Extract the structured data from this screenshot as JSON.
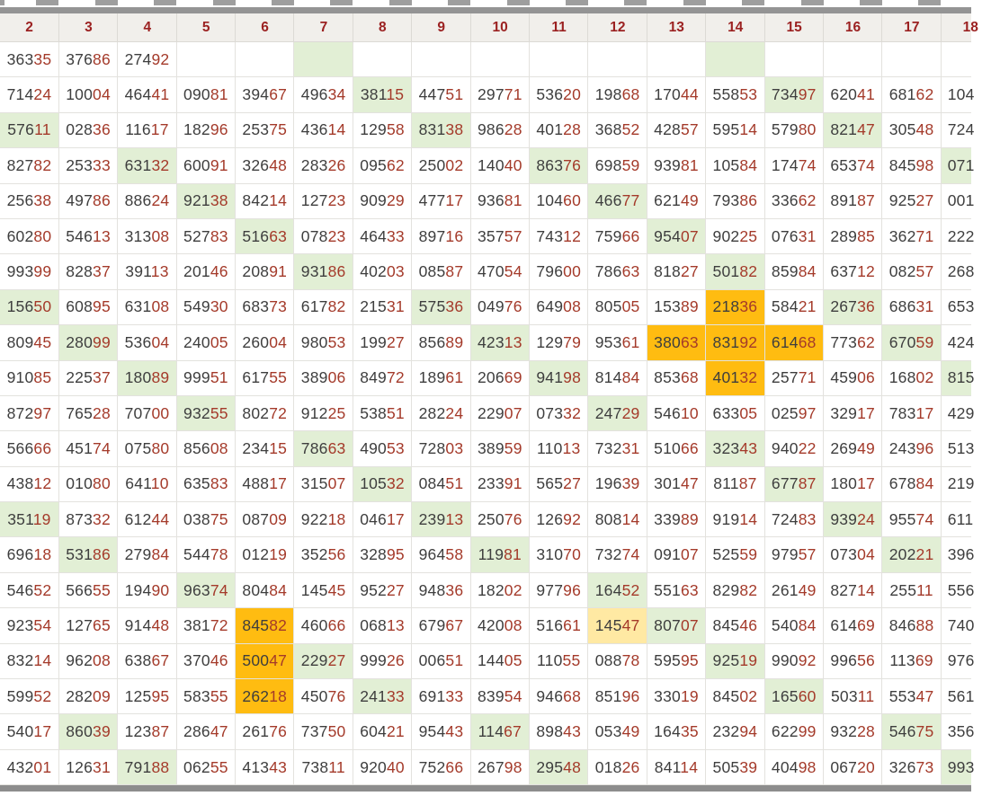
{
  "colors": {
    "digit_prefix": "#3e3e3e",
    "digit_suffix": "#a43a2a",
    "header_text": "#9b2121",
    "header_bg": "#f1efeb",
    "grid_border": "#e3e2de",
    "frame_bar": "#949494",
    "highlights": {
      "g": "#e2efd5",
      "o": "#ffbc11",
      "y": "#ffe9a3"
    },
    "highlight_legend": {
      "g": "light-green",
      "o": "orange",
      "y": "pale-yellow"
    }
  },
  "table": {
    "columns": [
      "2",
      "3",
      "4",
      "5",
      "6",
      "7",
      "8",
      "9",
      "10",
      "11",
      "12",
      "13",
      "14",
      "15",
      "16",
      "17",
      "18"
    ],
    "rows": [
      [
        "36335",
        "37686",
        "27492",
        "",
        "",
        "#g",
        "",
        "",
        "",
        "",
        "",
        "",
        "#g",
        "",
        "",
        "",
        ""
      ],
      [
        "71424",
        "10004",
        "46441",
        "09081",
        "39467",
        "49634",
        "38115#g",
        "44751",
        "29771",
        "53620",
        "19868",
        "17044",
        "55853",
        "73497#g",
        "62041",
        "68162",
        "104"
      ],
      [
        "57611#g",
        "02836",
        "11617",
        "18296",
        "25375",
        "43614",
        "12958",
        "83138#g",
        "98628",
        "40128",
        "36852",
        "42857",
        "59514",
        "57980",
        "82147#g",
        "30548",
        "724"
      ],
      [
        "82782",
        "25333",
        "63132#g",
        "60091",
        "32648",
        "28326",
        "09562",
        "25002",
        "14040",
        "86376#g",
        "69859",
        "93981",
        "10584",
        "17474",
        "65374",
        "84598",
        "071#g"
      ],
      [
        "25638",
        "49786",
        "88624",
        "92138#g",
        "84214",
        "12723",
        "90929",
        "47717",
        "93681",
        "10460",
        "46677#g",
        "62149",
        "79386",
        "33662",
        "89187",
        "92527",
        "001"
      ],
      [
        "60280",
        "54613",
        "31308",
        "52783",
        "51663#g",
        "07823",
        "46433",
        "89716",
        "35757",
        "74312",
        "75966",
        "95407#g",
        "90225",
        "07631",
        "28985",
        "36271",
        "222"
      ],
      [
        "99399",
        "82837",
        "39113",
        "20146",
        "20891",
        "93186#g",
        "40203",
        "08587",
        "47054",
        "79600",
        "78663",
        "81827",
        "50182#g",
        "85984",
        "63712",
        "08257",
        "268"
      ],
      [
        "15650#g",
        "60895",
        "63108",
        "54930",
        "68373",
        "61782",
        "21531",
        "57536#g",
        "04976",
        "64908",
        "80505",
        "15389",
        "21836#o",
        "58421",
        "26736#g",
        "68631",
        "653"
      ],
      [
        "80945",
        "28099#g",
        "53604",
        "24005",
        "26004",
        "98053",
        "19927",
        "85689",
        "42313#g",
        "12979",
        "95361",
        "38063#o",
        "83192#o",
        "61468#o",
        "77362",
        "67059#g",
        "424"
      ],
      [
        "91085",
        "22537",
        "18089#g",
        "99951",
        "61755",
        "38906",
        "84972",
        "18961",
        "20669",
        "94198#g",
        "81484",
        "85368",
        "40132#o",
        "25771",
        "45906",
        "16802",
        "815#g"
      ],
      [
        "87297",
        "76528",
        "70700",
        "93255#g",
        "80272",
        "91225",
        "53851",
        "28224",
        "22907",
        "07332",
        "24729#g",
        "54610",
        "63305",
        "02597",
        "32917",
        "78317",
        "429"
      ],
      [
        "56666",
        "45174",
        "07580",
        "85608",
        "23415",
        "78663#g",
        "49053",
        "72803",
        "38959",
        "11013",
        "73231",
        "51066",
        "32343#g",
        "94022",
        "26949",
        "24396",
        "513"
      ],
      [
        "43812",
        "01080",
        "64110",
        "63583",
        "48817",
        "31507",
        "10532#g",
        "08451",
        "23391",
        "56527",
        "19639",
        "30147",
        "81187",
        "67787#g",
        "18017",
        "67884",
        "219"
      ],
      [
        "35119#g",
        "87332",
        "61244",
        "03875",
        "08709",
        "92218",
        "04617",
        "23913#g",
        "25076",
        "12692",
        "80814",
        "33989",
        "91914",
        "72483",
        "93924#g",
        "95574",
        "611"
      ],
      [
        "69618",
        "53186#g",
        "27984",
        "54478",
        "01219",
        "35256",
        "32895",
        "96458",
        "11981#g",
        "31070",
        "73274",
        "09107",
        "52559",
        "97957",
        "07304",
        "20221#g",
        "396"
      ],
      [
        "54652",
        "56655",
        "19490",
        "96374#g",
        "80484",
        "14545",
        "95227",
        "94836",
        "18202",
        "97796",
        "16452#g",
        "55163",
        "82982",
        "26149",
        "82714",
        "25511",
        "556"
      ],
      [
        "92354",
        "12765",
        "91448",
        "38172",
        "84582#o",
        "46066",
        "06813",
        "67967",
        "42008",
        "51661",
        "14547#y",
        "80707#g",
        "84546",
        "54084",
        "61469",
        "84688",
        "740"
      ],
      [
        "83214",
        "96208",
        "63867",
        "37046",
        "50047#o",
        "22927#g",
        "99926",
        "00651",
        "14405",
        "11055",
        "08878",
        "59595",
        "92519#g",
        "99092",
        "99656",
        "11369",
        "976"
      ],
      [
        "59952",
        "28209",
        "12595",
        "58355",
        "26218#o",
        "45076",
        "24133#g",
        "69133",
        "83954",
        "94668",
        "85196",
        "33019",
        "84502",
        "16560#g",
        "50311",
        "55347",
        "561"
      ],
      [
        "54017",
        "86039#g",
        "12387",
        "28647",
        "26176",
        "73750",
        "60421",
        "95443",
        "11467#g",
        "89843",
        "05349",
        "16435",
        "23294",
        "62299",
        "93228",
        "54675#g",
        "356"
      ],
      [
        "43201",
        "12631",
        "79188#g",
        "06255",
        "41343",
        "73811",
        "92040",
        "75266",
        "26798",
        "29548#g",
        "01826",
        "84114",
        "50539",
        "40498",
        "06720",
        "32673",
        "993#g"
      ]
    ]
  }
}
